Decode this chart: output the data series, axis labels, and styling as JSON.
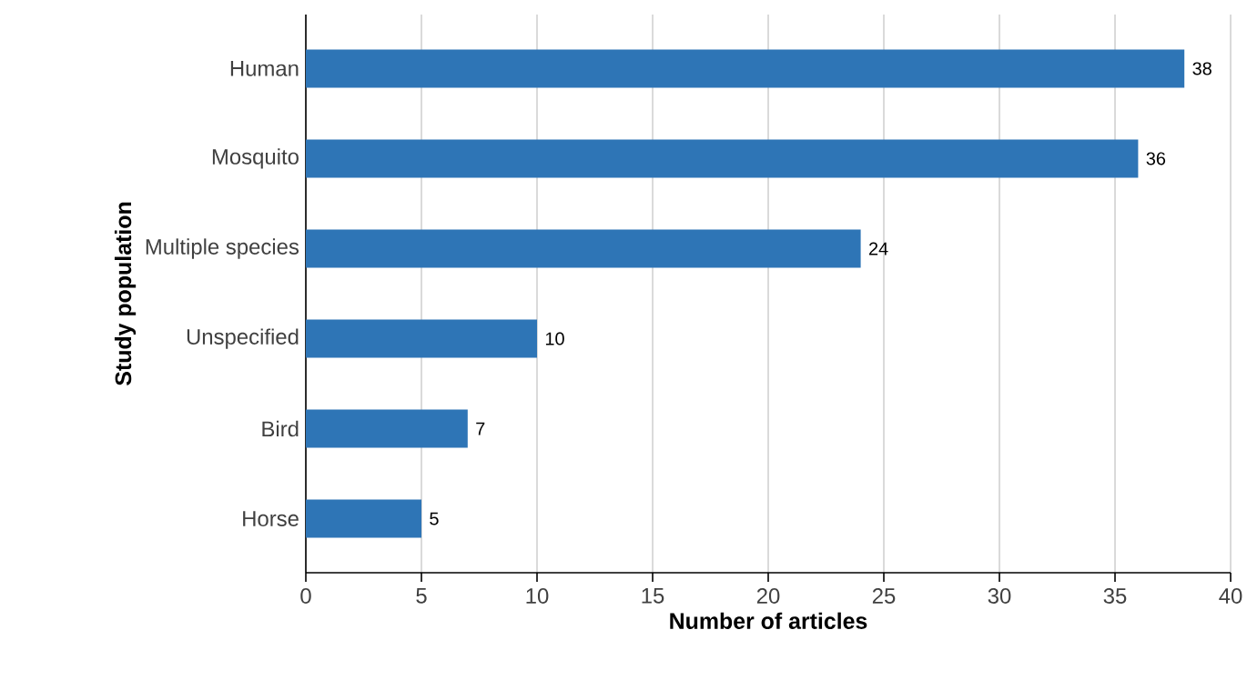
{
  "chart_data": {
    "type": "bar",
    "orientation": "horizontal",
    "categories": [
      "Human",
      "Mosquito",
      "Multiple species",
      "Unspecified",
      "Bird",
      "Horse"
    ],
    "values": [
      38,
      36,
      24,
      10,
      7,
      5
    ],
    "color": "#2e75b6",
    "xlabel": "Number of articles",
    "ylabel": "Study population",
    "xlim": [
      0,
      40
    ],
    "xticks": [
      0,
      5,
      10,
      15,
      20,
      25,
      30,
      35,
      40
    ],
    "grid": "x",
    "data_labels": true
  }
}
